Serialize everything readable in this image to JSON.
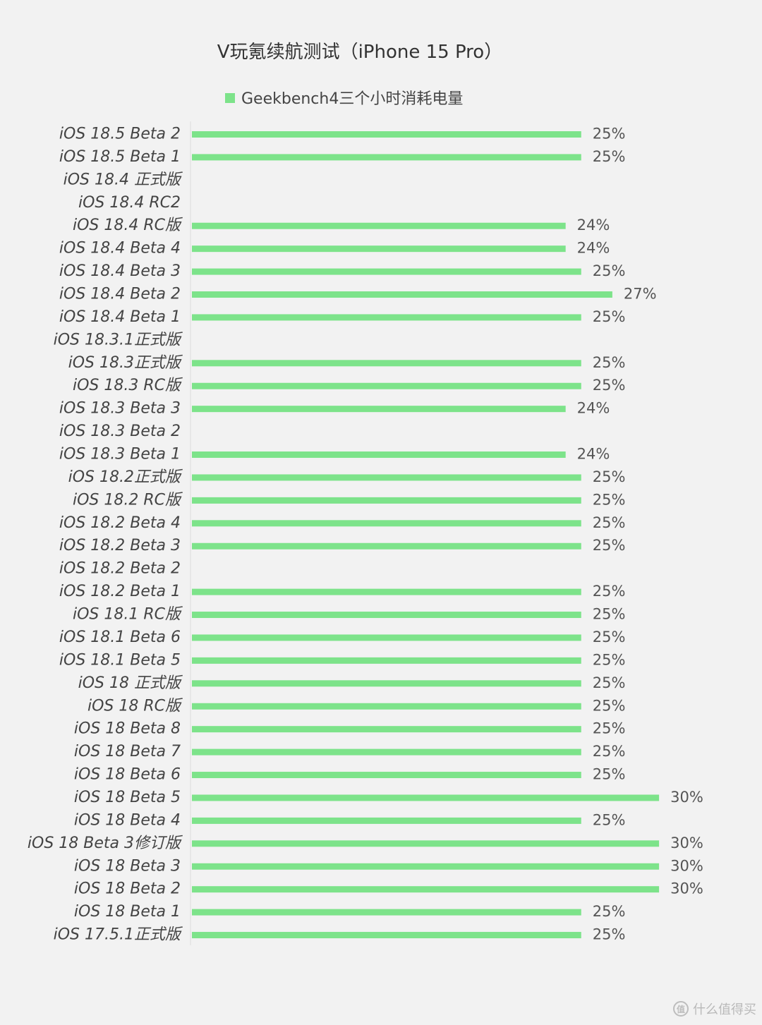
{
  "chart_data": {
    "type": "bar",
    "orientation": "horizontal",
    "title": "V玩氪续航测试（iPhone 15 Pro）",
    "legend_position": "top",
    "grid": false,
    "xlim": [
      0,
      30
    ],
    "categories": [
      "iOS 18.5 Beta 2",
      "iOS 18.5 Beta 1",
      "iOS 18.4 正式版",
      "iOS 18.4 RC2",
      "iOS 18.4 RC版",
      "iOS 18.4 Beta 4",
      "iOS 18.4 Beta 3",
      "iOS 18.4 Beta 2",
      "iOS 18.4 Beta 1",
      "iOS 18.3.1正式版",
      "iOS 18.3正式版",
      "iOS 18.3 RC版",
      "iOS 18.3 Beta 3",
      "iOS 18.3 Beta 2",
      "iOS 18.3 Beta 1",
      "iOS 18.2正式版",
      "iOS 18.2 RC版",
      "iOS 18.2 Beta 4",
      "iOS 18.2 Beta 3",
      "iOS 18.2 Beta 2",
      "iOS 18.2 Beta 1",
      "iOS 18.1 RC版",
      "iOS 18.1 Beta 6",
      "iOS 18.1 Beta 5",
      "iOS 18 正式版",
      "iOS 18 RC版",
      "iOS 18 Beta 8",
      "iOS 18 Beta 7",
      "iOS 18 Beta 6",
      "iOS 18 Beta 5",
      "iOS 18 Beta 4",
      "iOS 18 Beta 3修订版",
      "iOS 18 Beta 3",
      "iOS 18 Beta 2",
      "iOS 18 Beta 1",
      "iOS 17.5.1正式版"
    ],
    "series": [
      {
        "name": "Geekbench4三个小时消耗电量",
        "color": "#7de38a",
        "values": [
          25,
          25,
          null,
          null,
          24,
          24,
          25,
          27,
          25,
          null,
          25,
          25,
          24,
          null,
          24,
          25,
          25,
          25,
          25,
          null,
          25,
          25,
          25,
          25,
          25,
          25,
          25,
          25,
          25,
          30,
          25,
          30,
          30,
          30,
          25,
          25
        ],
        "labels": [
          "25%",
          "25%",
          "",
          "",
          "24%",
          "24%",
          "25%",
          "27%",
          "25%",
          "",
          "25%",
          "25%",
          "24%",
          "",
          "24%",
          "25%",
          "25%",
          "25%",
          "25%",
          "",
          "25%",
          "25%",
          "25%",
          "25%",
          "25%",
          "25%",
          "25%",
          "25%",
          "25%",
          "30%",
          "25%",
          "30%",
          "30%",
          "30%",
          "25%",
          "25%"
        ]
      }
    ]
  },
  "watermark": {
    "logo_glyph": "值",
    "text": "什么值得买"
  }
}
